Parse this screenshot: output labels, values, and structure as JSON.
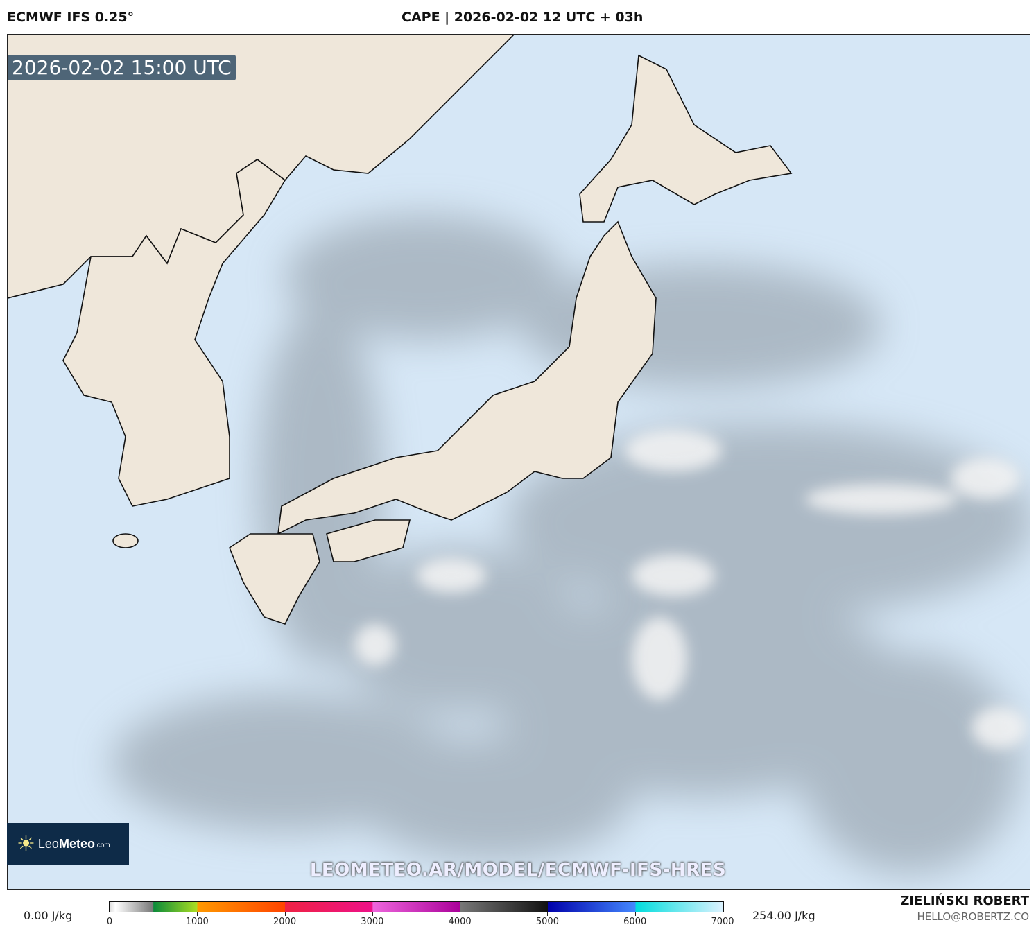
{
  "header": {
    "model": "ECMWF IFS 0.25°",
    "title": "CAPE | 2026-02-02 12 UTC + 03h"
  },
  "map": {
    "valid_time": "2026-02-02 15:00 UTC",
    "ocean_color": "#d6e7f6",
    "land_color": "#efe7da",
    "watermark_url": "LEOMETEO.AR/MODEL/ECMWF-IFS-HRES"
  },
  "logo": {
    "text_light": "Leo",
    "text_bold": "Meteo",
    "suffix": ".com"
  },
  "colorbar": {
    "min_label": "0.00 J/kg",
    "max_label": "254.00 J/kg",
    "ticks": [
      "0",
      "1000",
      "2000",
      "3000",
      "4000",
      "5000",
      "6000",
      "7000"
    ]
  },
  "footer": {
    "author": "ZIELIŃSKI ROBERT",
    "email": "HELLO@ROBERTZ.CO"
  }
}
